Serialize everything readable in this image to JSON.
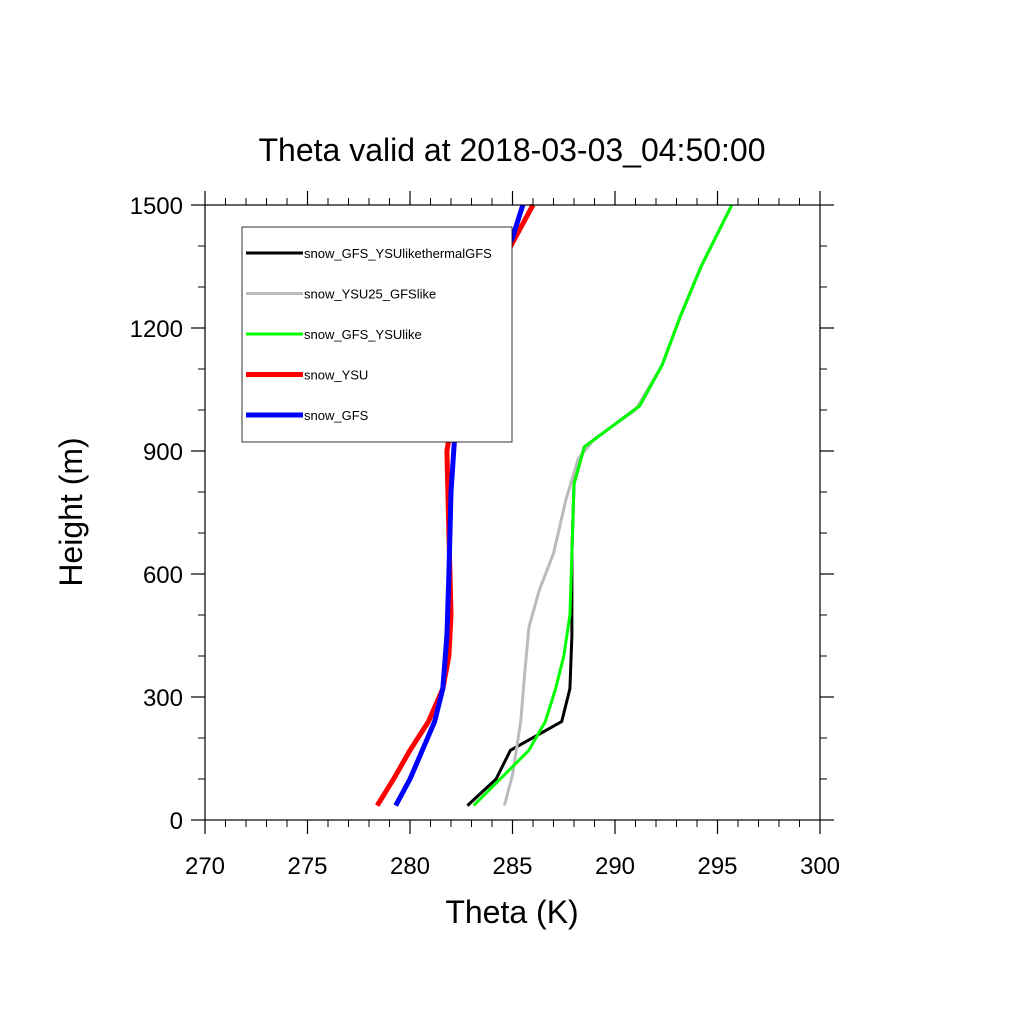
{
  "chart_data": {
    "type": "line",
    "title": "Theta valid at 2018-03-03_04:50:00",
    "xlabel": "Theta (K)",
    "ylabel": "Height (m)",
    "xlim": [
      270,
      300
    ],
    "ylim": [
      0,
      1500
    ],
    "xticks": [
      270,
      275,
      280,
      285,
      290,
      295,
      300
    ],
    "yticks": [
      0,
      300,
      600,
      900,
      1200,
      1500
    ],
    "xtick_labels": [
      "270",
      "275",
      "280",
      "285",
      "290",
      "295",
      "300"
    ],
    "ytick_labels": [
      "0",
      "300",
      "600",
      "900",
      "1200",
      "1500"
    ],
    "grid": false,
    "legend_position": "top-left",
    "series": [
      {
        "name": "snow_GFS_YSUlikethermalGFS",
        "color": "#000000",
        "points": [
          [
            282.8,
            35
          ],
          [
            284.2,
            100
          ],
          [
            284.9,
            170
          ],
          [
            287.4,
            240
          ],
          [
            287.8,
            320
          ],
          [
            287.9,
            450
          ],
          [
            287.9,
            650
          ],
          [
            288.0,
            820
          ],
          [
            288.5,
            910
          ],
          [
            291.2,
            1010
          ],
          [
            292.3,
            1110
          ],
          [
            293.2,
            1230
          ],
          [
            294.2,
            1350
          ],
          [
            295.7,
            1500
          ]
        ]
      },
      {
        "name": "snow_YSU25_GFSlike",
        "color": "#bbbbbb",
        "points": [
          [
            284.6,
            35
          ],
          [
            285.0,
            110
          ],
          [
            285.4,
            240
          ],
          [
            285.6,
            360
          ],
          [
            285.8,
            470
          ],
          [
            286.3,
            560
          ],
          [
            287.0,
            650
          ],
          [
            287.6,
            780
          ],
          [
            288.2,
            880
          ],
          [
            289.0,
            930
          ],
          [
            291.0,
            1000
          ],
          [
            292.3,
            1110
          ],
          [
            293.2,
            1230
          ],
          [
            294.2,
            1350
          ],
          [
            295.7,
            1500
          ]
        ]
      },
      {
        "name": "snow_GFS_YSUlike",
        "color": "#00ff00",
        "points": [
          [
            283.1,
            35
          ],
          [
            284.6,
            110
          ],
          [
            285.8,
            170
          ],
          [
            286.6,
            240
          ],
          [
            287.1,
            320
          ],
          [
            287.5,
            400
          ],
          [
            287.8,
            500
          ],
          [
            287.9,
            650
          ],
          [
            288.0,
            820
          ],
          [
            288.5,
            910
          ],
          [
            291.2,
            1010
          ],
          [
            292.3,
            1110
          ],
          [
            293.2,
            1230
          ],
          [
            294.2,
            1350
          ],
          [
            295.7,
            1500
          ]
        ]
      },
      {
        "name": "snow_YSU",
        "color": "#ff0000",
        "points": [
          [
            278.4,
            35
          ],
          [
            279.2,
            100
          ],
          [
            280.0,
            170
          ],
          [
            280.9,
            240
          ],
          [
            281.6,
            320
          ],
          [
            281.9,
            400
          ],
          [
            282.0,
            500
          ],
          [
            281.9,
            700
          ],
          [
            281.8,
            900
          ],
          [
            282.4,
            1080
          ],
          [
            283.1,
            1200
          ],
          [
            284.7,
            1380
          ],
          [
            286.0,
            1500
          ]
        ]
      },
      {
        "name": "snow_GFS",
        "color": "#0000ff",
        "points": [
          [
            279.3,
            35
          ],
          [
            280.0,
            100
          ],
          [
            280.6,
            170
          ],
          [
            281.2,
            240
          ],
          [
            281.6,
            320
          ],
          [
            281.8,
            450
          ],
          [
            281.9,
            600
          ],
          [
            282.0,
            800
          ],
          [
            282.2,
            950
          ],
          [
            282.5,
            1100
          ],
          [
            283.0,
            1200
          ],
          [
            283.7,
            1300
          ],
          [
            285.0,
            1420
          ],
          [
            285.5,
            1500
          ]
        ]
      }
    ]
  }
}
